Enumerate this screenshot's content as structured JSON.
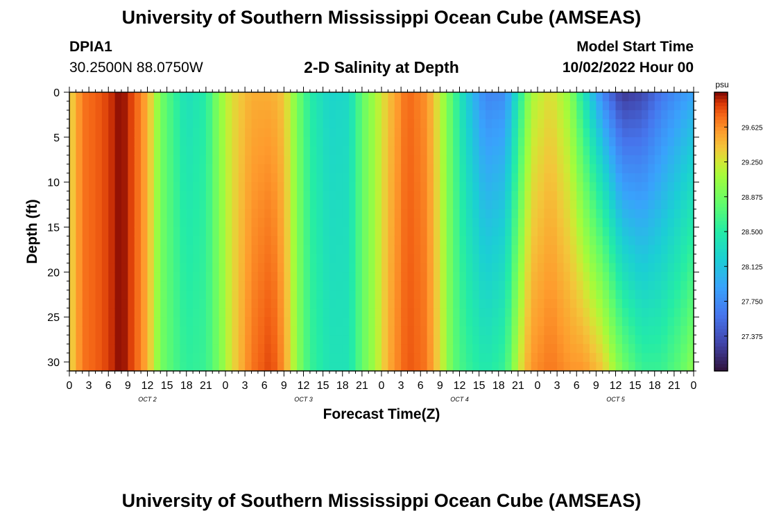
{
  "title": "University of Southern Mississippi Ocean Cube (AMSEAS)",
  "footer_title": "University of Southern Mississippi Ocean Cube (AMSEAS)",
  "station": {
    "id": "DPIA1",
    "coords": "30.2500N  88.0750W"
  },
  "model": {
    "label": "Model Start Time",
    "start": "10/02/2022 Hour 00"
  },
  "chart_data": {
    "type": "heatmap",
    "title": "2-D Salinity at Depth",
    "xlabel": "Forecast Time(Z)",
    "ylabel": "Depth (ft)",
    "xlim": [
      0,
      96
    ],
    "ylim": [
      0,
      31
    ],
    "x_ticks": [
      0,
      3,
      6,
      9,
      12,
      15,
      18,
      21,
      24,
      27,
      30,
      33,
      36,
      39,
      42,
      45,
      48,
      51,
      54,
      57,
      60,
      63,
      66,
      69,
      72,
      75,
      78,
      81,
      84,
      87,
      90,
      93,
      96
    ],
    "x_tick_labels": [
      "0",
      "3",
      "6",
      "9",
      "12",
      "15",
      "18",
      "21",
      "0",
      "3",
      "6",
      "9",
      "12",
      "15",
      "18",
      "21",
      "0",
      "3",
      "6",
      "9",
      "12",
      "15",
      "18",
      "21",
      "0",
      "3",
      "6",
      "9",
      "12",
      "15",
      "18",
      "21",
      "0"
    ],
    "y_ticks": [
      0,
      5,
      10,
      15,
      20,
      25,
      30
    ],
    "y_tick_labels": [
      "0",
      "5",
      "10",
      "15",
      "20",
      "25",
      "30"
    ],
    "day_labels": [
      {
        "text": "OCT 2",
        "hour": 12
      },
      {
        "text": "OCT 3",
        "hour": 36
      },
      {
        "text": "OCT 4",
        "hour": 60
      },
      {
        "text": "OCT 5",
        "hour": 84
      }
    ],
    "colorbar": {
      "unit": "psu",
      "min": 27.0,
      "max": 30.0,
      "tick_values": [
        29.625,
        29.25,
        28.875,
        28.5,
        28.125,
        27.75,
        27.375
      ],
      "tick_labels": [
        "29.625",
        "29.250",
        "28.875",
        "28.500",
        "28.125",
        "27.750",
        "27.375"
      ]
    },
    "salinity_profile": [
      {
        "hour": 0,
        "surface": 29.3,
        "deep": 29.3
      },
      {
        "hour": 2,
        "surface": 29.7,
        "deep": 29.7
      },
      {
        "hour": 5,
        "surface": 29.8,
        "deep": 29.8
      },
      {
        "hour": 8,
        "surface": 30.0,
        "deep": 30.0
      },
      {
        "hour": 10,
        "surface": 29.8,
        "deep": 29.8
      },
      {
        "hour": 12,
        "surface": 29.5,
        "deep": 29.5
      },
      {
        "hour": 14,
        "surface": 28.9,
        "deep": 28.9
      },
      {
        "hour": 16,
        "surface": 28.6,
        "deep": 28.7
      },
      {
        "hour": 18,
        "surface": 28.35,
        "deep": 28.55
      },
      {
        "hour": 21,
        "surface": 28.5,
        "deep": 28.6
      },
      {
        "hour": 23,
        "surface": 29.0,
        "deep": 28.9
      },
      {
        "hour": 25,
        "surface": 29.3,
        "deep": 29.3
      },
      {
        "hour": 28,
        "surface": 29.5,
        "deep": 29.7
      },
      {
        "hour": 31,
        "surface": 29.5,
        "deep": 29.85
      },
      {
        "hour": 33,
        "surface": 29.4,
        "deep": 29.6
      },
      {
        "hour": 35,
        "surface": 28.9,
        "deep": 29.0
      },
      {
        "hour": 37,
        "surface": 28.5,
        "deep": 28.6
      },
      {
        "hour": 40,
        "surface": 28.25,
        "deep": 28.4
      },
      {
        "hour": 43,
        "surface": 28.3,
        "deep": 28.4
      },
      {
        "hour": 45,
        "surface": 28.8,
        "deep": 28.8
      },
      {
        "hour": 47,
        "surface": 29.1,
        "deep": 29.1
      },
      {
        "hour": 49,
        "surface": 29.4,
        "deep": 29.5
      },
      {
        "hour": 52,
        "surface": 29.75,
        "deep": 29.8
      },
      {
        "hour": 55,
        "surface": 29.6,
        "deep": 29.7
      },
      {
        "hour": 57,
        "surface": 29.2,
        "deep": 29.3
      },
      {
        "hour": 59,
        "surface": 28.7,
        "deep": 28.8
      },
      {
        "hour": 61,
        "surface": 28.2,
        "deep": 28.6
      },
      {
        "hour": 64,
        "surface": 27.7,
        "deep": 28.45
      },
      {
        "hour": 67,
        "surface": 27.75,
        "deep": 28.6
      },
      {
        "hour": 69,
        "surface": 28.4,
        "deep": 29.2
      },
      {
        "hour": 71,
        "surface": 29.1,
        "deep": 29.6
      },
      {
        "hour": 74,
        "surface": 29.3,
        "deep": 29.7
      },
      {
        "hour": 77,
        "surface": 29.0,
        "deep": 29.6
      },
      {
        "hour": 79,
        "surface": 28.4,
        "deep": 29.6
      },
      {
        "hour": 82,
        "surface": 27.7,
        "deep": 29.4
      },
      {
        "hour": 85,
        "surface": 27.2,
        "deep": 28.9
      },
      {
        "hour": 88,
        "surface": 27.3,
        "deep": 28.6
      },
      {
        "hour": 91,
        "surface": 27.6,
        "deep": 28.6
      },
      {
        "hour": 94,
        "surface": 27.8,
        "deep": 28.8
      },
      {
        "hour": 96,
        "surface": 27.9,
        "deep": 29.0
      }
    ]
  }
}
